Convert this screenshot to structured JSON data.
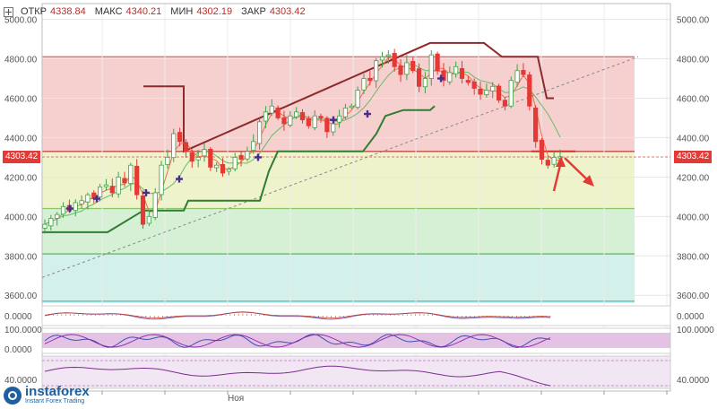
{
  "header": {
    "open_label": "ОТКР",
    "open_value": "4338.84",
    "high_label": "МАКС",
    "high_value": "4340.21",
    "low_label": "МИН",
    "low_value": "4302.19",
    "close_label": "ЗАКР",
    "close_value": "4303.42"
  },
  "current_price": "4303.42",
  "x_label": "Ноя",
  "logo": {
    "name": "instaforex",
    "tagline": "Instant Forex Trading",
    "icon": "instaforex-logo-icon"
  },
  "colors": {
    "bull": "#43a047",
    "bear": "#e53935",
    "zone_red": "#f6cfcf",
    "zone_yellow": "#eef3cc",
    "zone_green": "#d6f0d6",
    "zone_mint": "#d3f1ea",
    "trail_up": "#2e7d32",
    "trail_down": "#8d2a2a",
    "osc_band": "#d7a8d9"
  },
  "chart_data": {
    "type": "candlestick",
    "y_axis": {
      "ticks": [
        "5000.00",
        "4800.00",
        "4600.00",
        "4400.00",
        "4200.00",
        "4000.00",
        "3800.00",
        "3600.00"
      ],
      "range": [
        3560,
        5080
      ]
    },
    "zones": [
      {
        "from": 4330,
        "to": 4810,
        "color": "red"
      },
      {
        "from": 4040,
        "to": 4330,
        "color": "yellow"
      },
      {
        "from": 3810,
        "to": 4040,
        "color": "green"
      },
      {
        "from": 3560,
        "to": 3810,
        "color": "mint"
      }
    ],
    "close_series": [
      3960,
      3990,
      4010,
      4050,
      4030,
      4070,
      4080,
      4110,
      4090,
      4150,
      4160,
      4120,
      4200,
      4170,
      4260,
      4110,
      3960,
      4000,
      4120,
      4260,
      4300,
      4420,
      4380,
      4330,
      4280,
      4300,
      4340,
      4250,
      4260,
      4220,
      4240,
      4300,
      4290,
      4330,
      4380,
      4480,
      4530,
      4560,
      4500,
      4470,
      4510,
      4530,
      4490,
      4460,
      4510,
      4500,
      4430,
      4470,
      4510,
      4550,
      4560,
      4640,
      4700,
      4690,
      4790,
      4810,
      4820,
      4760,
      4720,
      4780,
      4740,
      4660,
      4700,
      4820,
      4740,
      4690,
      4730,
      4760,
      4700,
      4680,
      4650,
      4620,
      4640,
      4660,
      4590,
      4560,
      4690,
      4740,
      4720,
      4560,
      4380,
      4290,
      4260,
      4300,
      4303
    ],
    "indicators": {
      "upper_trail": [
        4660,
        4660,
        4340,
        4880,
        4810,
        4600
      ],
      "lower_trail": [
        3920,
        4030,
        4080,
        4330,
        4540,
        4560
      ],
      "osc1_ticks": [
        "0.0000"
      ],
      "osc2_ticks": [
        "100.0000",
        "0.0000"
      ],
      "osc3_ticks": [
        "40.0000"
      ]
    }
  }
}
